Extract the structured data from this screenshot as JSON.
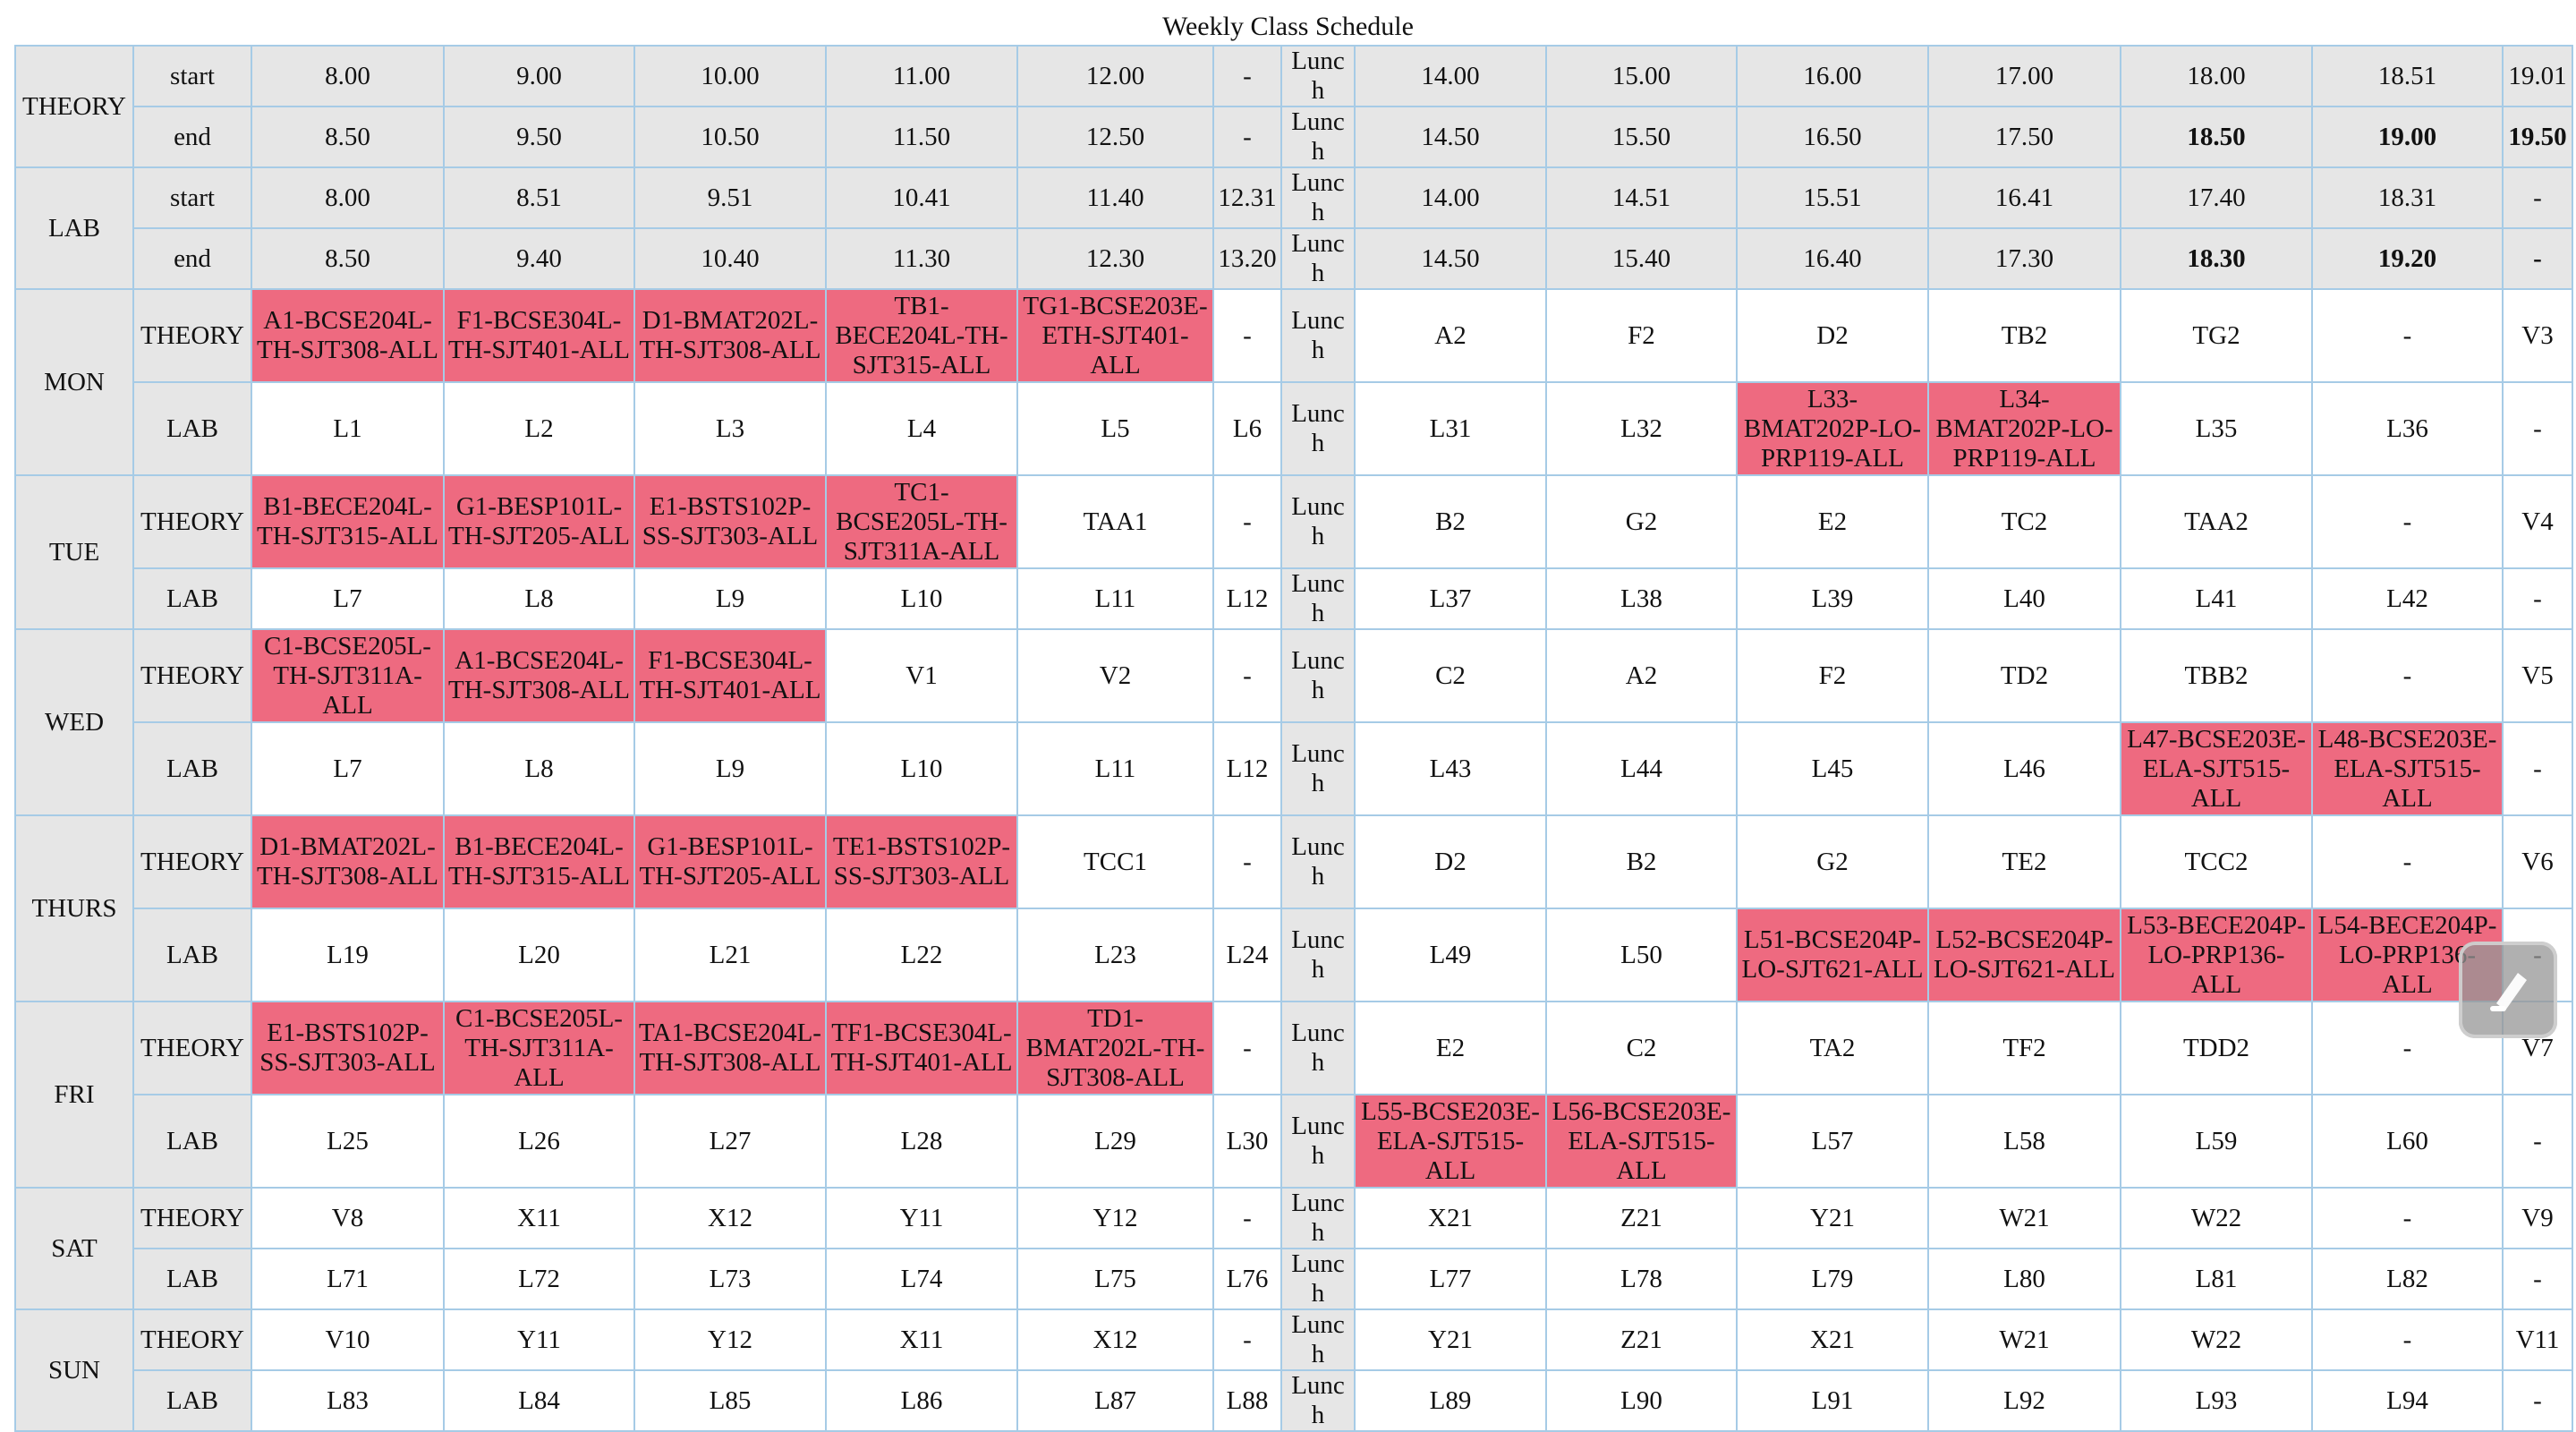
{
  "title": "Weekly Class Schedule",
  "colors": {
    "header_bg": "#e6e6e6",
    "busy_bg": "#ee6a80",
    "border": "#a6cbe6"
  },
  "header": {
    "theory_label": "THEORY",
    "lab_label": "LAB",
    "start_label": "start",
    "end_label": "end",
    "theory_start": [
      "8.00",
      "9.00",
      "10.00",
      "11.00",
      "12.00",
      "-",
      "Lunch",
      "14.00",
      "15.00",
      "16.00",
      "17.00",
      "18.00",
      "18.51",
      "19.01"
    ],
    "theory_end": [
      "8.50",
      "9.50",
      "10.50",
      "11.50",
      "12.50",
      "-",
      "Lunch",
      "14.50",
      "15.50",
      "16.50",
      "17.50",
      "18.50",
      "19.00",
      "19.50"
    ],
    "lab_start": [
      "8.00",
      "8.51",
      "9.51",
      "10.41",
      "11.40",
      "12.31",
      "Lunch",
      "14.00",
      "14.51",
      "15.51",
      "16.41",
      "17.40",
      "18.31",
      "-"
    ],
    "lab_end": [
      "8.50",
      "9.40",
      "10.40",
      "11.30",
      "12.30",
      "13.20",
      "Lunch",
      "14.50",
      "15.40",
      "16.40",
      "17.30",
      "18.30",
      "19.20",
      "-"
    ]
  },
  "days": [
    {
      "name": "MON",
      "theory": [
        "A1-BCSE204L-TH-SJT308-ALL",
        "F1-BCSE304L-TH-SJT401-ALL",
        "D1-BMAT202L-TH-SJT308-ALL",
        "TB1-BECE204L-TH-SJT315-ALL",
        "TG1-BCSE203E-ETH-SJT401-ALL",
        "-",
        "Lunch",
        "A2",
        "F2",
        "D2",
        "TB2",
        "TG2",
        "-",
        "V3"
      ],
      "lab": [
        "L1",
        "L2",
        "L3",
        "L4",
        "L5",
        "L6",
        "Lunch",
        "L31",
        "L32",
        "L33-BMAT202P-LO-PRP119-ALL",
        "L34-BMAT202P-LO-PRP119-ALL",
        "L35",
        "L36",
        "-"
      ]
    },
    {
      "name": "TUE",
      "theory": [
        "B1-BECE204L-TH-SJT315-ALL",
        "G1-BESP101L-TH-SJT205-ALL",
        "E1-BSTS102P-SS-SJT303-ALL",
        "TC1-BCSE205L-TH-SJT311A-ALL",
        "TAA1",
        "-",
        "Lunch",
        "B2",
        "G2",
        "E2",
        "TC2",
        "TAA2",
        "-",
        "V4"
      ],
      "lab": [
        "L7",
        "L8",
        "L9",
        "L10",
        "L11",
        "L12",
        "Lunch",
        "L37",
        "L38",
        "L39",
        "L40",
        "L41",
        "L42",
        "-"
      ]
    },
    {
      "name": "WED",
      "theory": [
        "C1-BCSE205L-TH-SJT311A-ALL",
        "A1-BCSE204L-TH-SJT308-ALL",
        "F1-BCSE304L-TH-SJT401-ALL",
        "V1",
        "V2",
        "-",
        "Lunch",
        "C2",
        "A2",
        "F2",
        "TD2",
        "TBB2",
        "-",
        "V5"
      ],
      "lab": [
        "L7",
        "L8",
        "L9",
        "L10",
        "L11",
        "L12",
        "Lunch",
        "L43",
        "L44",
        "L45",
        "L46",
        "L47-BCSE203E-ELA-SJT515-ALL",
        "L48-BCSE203E-ELA-SJT515-ALL",
        "-"
      ]
    },
    {
      "name": "THURS",
      "theory": [
        "D1-BMAT202L-TH-SJT308-ALL",
        "B1-BECE204L-TH-SJT315-ALL",
        "G1-BESP101L-TH-SJT205-ALL",
        "TE1-BSTS102P-SS-SJT303-ALL",
        "TCC1",
        "-",
        "Lunch",
        "D2",
        "B2",
        "G2",
        "TE2",
        "TCC2",
        "-",
        "V6"
      ],
      "lab": [
        "L19",
        "L20",
        "L21",
        "L22",
        "L23",
        "L24",
        "Lunch",
        "L49",
        "L50",
        "L51-BCSE204P-LO-SJT621-ALL",
        "L52-BCSE204P-LO-SJT621-ALL",
        "L53-BECE204P-LO-PRP136-ALL",
        "L54-BECE204P-LO-PRP136-ALL",
        "-"
      ]
    },
    {
      "name": "FRI",
      "theory": [
        "E1-BSTS102P-SS-SJT303-ALL",
        "C1-BCSE205L-TH-SJT311A-ALL",
        "TA1-BCSE204L-TH-SJT308-ALL",
        "TF1-BCSE304L-TH-SJT401-ALL",
        "TD1-BMAT202L-TH-SJT308-ALL",
        "-",
        "Lunch",
        "E2",
        "C2",
        "TA2",
        "TF2",
        "TDD2",
        "-",
        "V7"
      ],
      "lab": [
        "L25",
        "L26",
        "L27",
        "L28",
        "L29",
        "L30",
        "Lunch",
        "L55-BCSE203E-ELA-SJT515-ALL",
        "L56-BCSE203E-ELA-SJT515-ALL",
        "L57",
        "L58",
        "L59",
        "L60",
        "-"
      ]
    },
    {
      "name": "SAT",
      "theory": [
        "V8",
        "X11",
        "X12",
        "Y11",
        "Y12",
        "-",
        "Lunch",
        "X21",
        "Z21",
        "Y21",
        "W21",
        "W22",
        "-",
        "V9"
      ],
      "lab": [
        "L71",
        "L72",
        "L73",
        "L74",
        "L75",
        "L76",
        "Lunch",
        "L77",
        "L78",
        "L79",
        "L80",
        "L81",
        "L82",
        "-"
      ]
    },
    {
      "name": "SUN",
      "theory": [
        "V10",
        "Y11",
        "Y12",
        "X11",
        "X12",
        "-",
        "Lunch",
        "Y21",
        "Z21",
        "X21",
        "W21",
        "W22",
        "-",
        "V11"
      ],
      "lab": [
        "L83",
        "L84",
        "L85",
        "L86",
        "L87",
        "L88",
        "Lunch",
        "L89",
        "L90",
        "L91",
        "L92",
        "L93",
        "L94",
        "-"
      ]
    }
  ],
  "overlay_icon": "pencil-eraser-icon"
}
